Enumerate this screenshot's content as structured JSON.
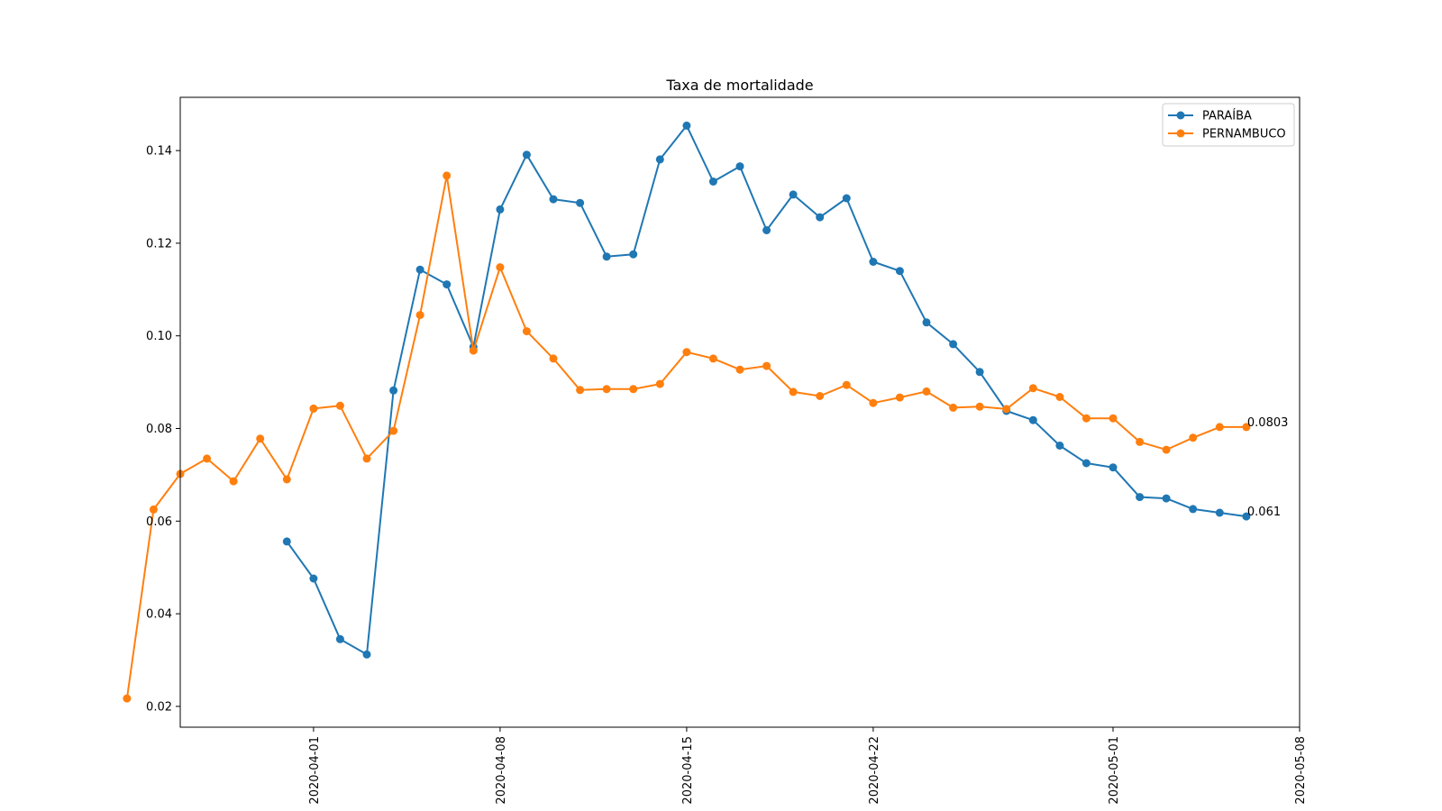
{
  "chart_data": {
    "type": "line",
    "title": "Taxa de mortalidade",
    "xlabel": "",
    "ylabel": "",
    "x_axis": "date",
    "xlim": [
      "2020-03-27",
      "2020-05-08"
    ],
    "ylim": [
      0.0155,
      0.1515
    ],
    "x_ticks": [
      "2020-04-01",
      "2020-04-08",
      "2020-04-15",
      "2020-04-22",
      "2020-05-01",
      "2020-05-08"
    ],
    "y_ticks": [
      0.02,
      0.04,
      0.06,
      0.08,
      0.1,
      0.12,
      0.14
    ],
    "y_tick_labels": [
      "0.02",
      "0.04",
      "0.06",
      "0.08",
      "0.10",
      "0.12",
      "0.14"
    ],
    "grid": false,
    "legend_position": "top-right",
    "series": [
      {
        "name": "PARAÍBA",
        "color": "#1f77b4",
        "marker": "circle",
        "end_label": "0.061",
        "x": [
          "2020-03-31",
          "2020-04-01",
          "2020-04-02",
          "2020-04-03",
          "2020-04-04",
          "2020-04-05",
          "2020-04-06",
          "2020-04-07",
          "2020-04-08",
          "2020-04-09",
          "2020-04-10",
          "2020-04-11",
          "2020-04-12",
          "2020-04-13",
          "2020-04-14",
          "2020-04-15",
          "2020-04-16",
          "2020-04-17",
          "2020-04-18",
          "2020-04-19",
          "2020-04-20",
          "2020-04-21",
          "2020-04-22",
          "2020-04-23",
          "2020-04-24",
          "2020-04-25",
          "2020-04-26",
          "2020-04-27",
          "2020-04-28",
          "2020-04-29",
          "2020-04-30",
          "2020-05-01",
          "2020-05-02",
          "2020-05-03",
          "2020-05-04",
          "2020-05-05",
          "2020-05-06"
        ],
        "values": [
          0.0556,
          0.0476,
          0.0345,
          0.0312,
          0.0882,
          0.1143,
          0.1111,
          0.0976,
          0.1273,
          0.1391,
          0.1295,
          0.1287,
          0.1171,
          0.1176,
          0.1381,
          0.1454,
          0.1333,
          0.1366,
          0.1228,
          0.1305,
          0.1256,
          0.1297,
          0.116,
          0.114,
          0.1029,
          0.0982,
          0.0922,
          0.0838,
          0.0818,
          0.0763,
          0.0725,
          0.0716,
          0.0652,
          0.0649,
          0.0626,
          0.0618,
          0.061
        ]
      },
      {
        "name": "PERNAMBUCO",
        "color": "#ff7f0e",
        "marker": "circle",
        "end_label": "0.0803",
        "x": [
          "2020-03-25",
          "2020-03-26",
          "2020-03-27",
          "2020-03-28",
          "2020-03-29",
          "2020-03-30",
          "2020-03-31",
          "2020-04-01",
          "2020-04-02",
          "2020-04-03",
          "2020-04-04",
          "2020-04-05",
          "2020-04-06",
          "2020-04-07",
          "2020-04-08",
          "2020-04-09",
          "2020-04-10",
          "2020-04-11",
          "2020-04-12",
          "2020-04-13",
          "2020-04-14",
          "2020-04-15",
          "2020-04-16",
          "2020-04-17",
          "2020-04-18",
          "2020-04-19",
          "2020-04-20",
          "2020-04-21",
          "2020-04-22",
          "2020-04-23",
          "2020-04-24",
          "2020-04-25",
          "2020-04-26",
          "2020-04-27",
          "2020-04-28",
          "2020-04-29",
          "2020-04-30",
          "2020-05-01",
          "2020-05-02",
          "2020-05-03",
          "2020-05-04",
          "2020-05-05",
          "2020-05-06"
        ],
        "values": [
          0.0217,
          0.0625,
          0.0702,
          0.0735,
          0.0686,
          0.0778,
          0.069,
          0.0843,
          0.0849,
          0.0735,
          0.0795,
          0.1045,
          0.1346,
          0.0968,
          0.1148,
          0.101,
          0.0951,
          0.0883,
          0.0885,
          0.0885,
          0.0896,
          0.0965,
          0.0951,
          0.0927,
          0.0935,
          0.0879,
          0.087,
          0.0894,
          0.0855,
          0.0867,
          0.088,
          0.0845,
          0.0847,
          0.0842,
          0.0887,
          0.0868,
          0.0822,
          0.0822,
          0.0771,
          0.0754,
          0.078,
          0.0803,
          0.0803
        ]
      }
    ]
  }
}
